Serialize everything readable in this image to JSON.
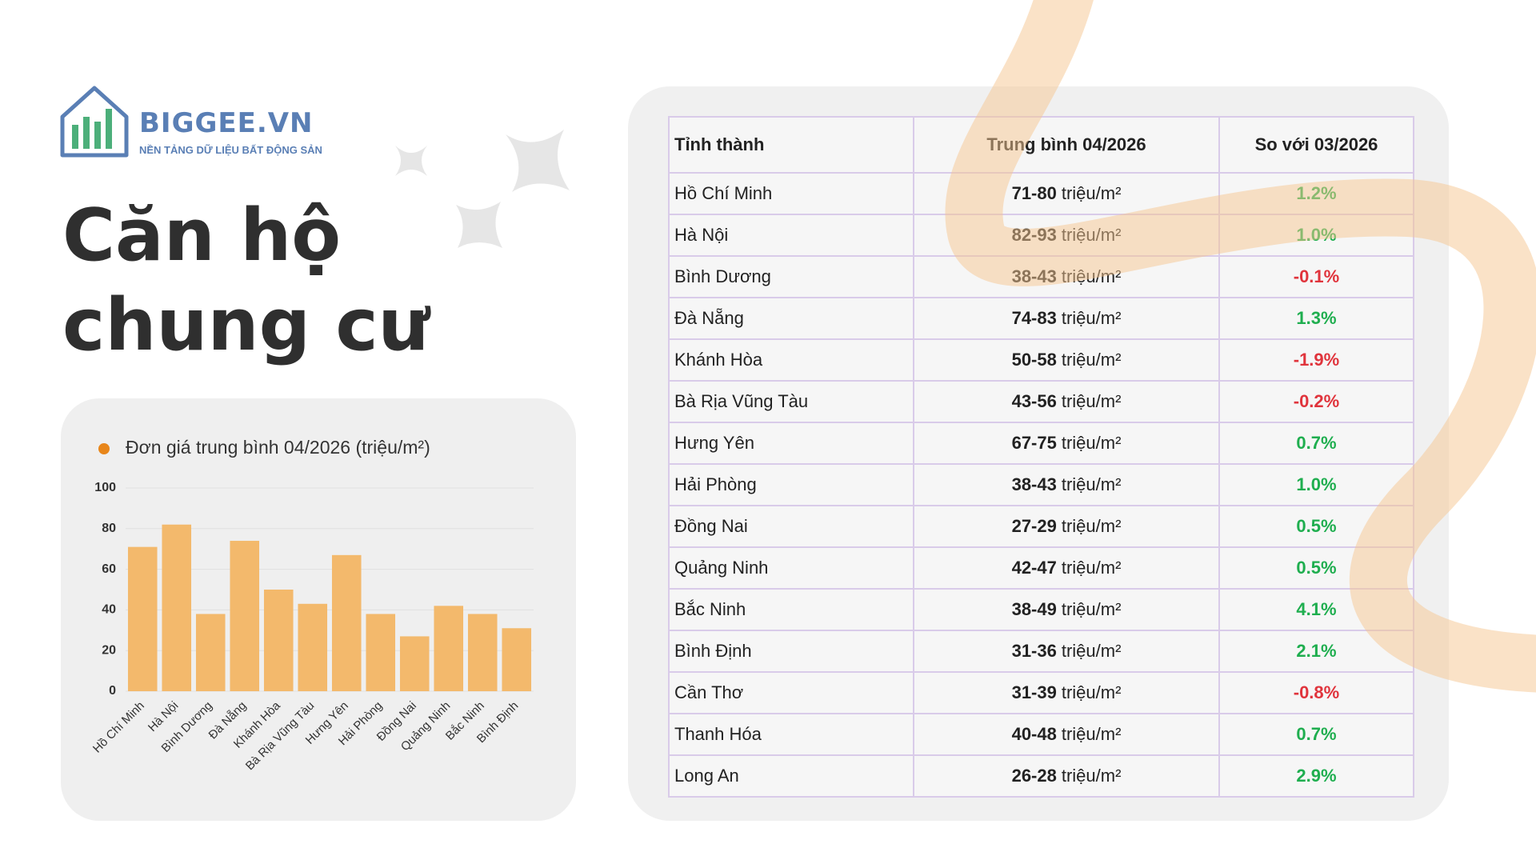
{
  "logo": {
    "name": "BIGGEE.VN",
    "tagline": "NỀN TẢNG DỮ LIỆU BẤT ĐỘNG SẢN"
  },
  "title": [
    "Căn hộ",
    "chung cư"
  ],
  "chart_data": {
    "type": "bar",
    "categories": [
      "Hồ Chí Minh",
      "Hà Nội",
      "Bình Dương",
      "Đà Nẵng",
      "Khánh Hòa",
      "Bà Rịa Vũng Tàu",
      "Hưng Yên",
      "Hải Phòng",
      "Đồng Nai",
      "Quảng Ninh",
      "Bắc Ninh",
      "Bình Định"
    ],
    "series": [
      {
        "name": "Đơn giá trung bình 04/2026 (triệu/m²)",
        "color": "#f3b96c",
        "legend_color": "#e8861a",
        "values": [
          71,
          82,
          38,
          74,
          50,
          43,
          67,
          38,
          27,
          42,
          38,
          31
        ]
      }
    ],
    "ylim": [
      0,
      100
    ],
    "yticks": [
      0,
      20,
      40,
      60,
      80,
      100
    ],
    "grid": true
  },
  "table": {
    "header": [
      "Tỉnh thành",
      "Trung bình 04/2026",
      "So với 03/2026"
    ],
    "rows": [
      [
        "Hồ Chí Minh",
        "71-80",
        "triệu/m²",
        "1.2%"
      ],
      [
        "Hà Nội",
        "82-93",
        "triệu/m²",
        "1.0%"
      ],
      [
        "Bình Dương",
        "38-43",
        "triệu/m²",
        "-0.1%"
      ],
      [
        "Đà Nẵng",
        "74-83",
        "triệu/m²",
        "1.3%"
      ],
      [
        "Khánh Hòa",
        "50-58",
        "triệu/m²",
        "-1.9%"
      ],
      [
        "Bà Rịa Vũng Tàu",
        "43-56",
        "triệu/m²",
        "-0.2%"
      ],
      [
        "Hưng Yên",
        "67-75",
        "triệu/m²",
        "0.7%"
      ],
      [
        "Hải Phòng",
        "38-43",
        "triệu/m²",
        "1.0%"
      ],
      [
        "Đồng Nai",
        "27-29",
        "triệu/m²",
        "0.5%"
      ],
      [
        "Quảng Ninh",
        "42-47",
        "triệu/m²",
        "0.5%"
      ],
      [
        "Bắc Ninh",
        "38-49",
        "triệu/m²",
        "4.1%"
      ],
      [
        "Bình Định",
        "31-36",
        "triệu/m²",
        "2.1%"
      ],
      [
        "Cần Thơ",
        "31-39",
        "triệu/m²",
        "-0.8%"
      ],
      [
        "Thanh Hóa",
        "40-48",
        "triệu/m²",
        "0.7%"
      ],
      [
        "Long An",
        "26-28",
        "triệu/m²",
        "2.9%"
      ]
    ]
  }
}
